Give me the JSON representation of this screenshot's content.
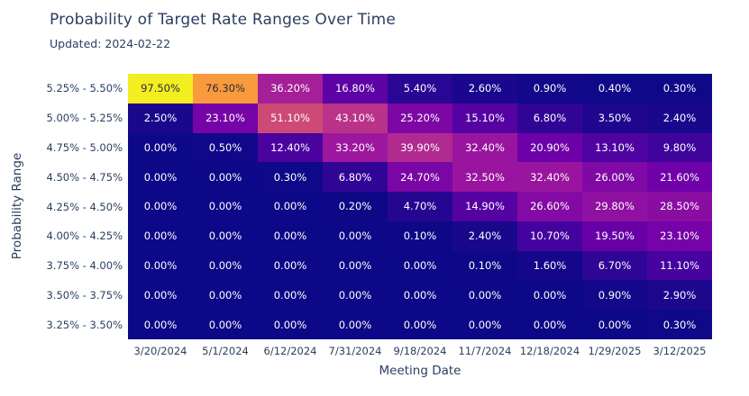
{
  "header": {
    "title": "Probability of Target Rate Ranges Over Time",
    "subtitle": "Updated: 2024-02-22"
  },
  "chart_data": {
    "type": "heatmap",
    "title": "Probability of Target Rate Ranges Over Time",
    "subtitle": "Updated: 2024-02-22",
    "xlabel": "Meeting Date",
    "ylabel": "Probability Range",
    "x_categories": [
      "3/20/2024",
      "5/1/2024",
      "6/12/2024",
      "7/31/2024",
      "9/18/2024",
      "11/7/2024",
      "12/18/2024",
      "1/29/2025",
      "3/12/2025"
    ],
    "y_categories": [
      "5.25% - 5.50%",
      "5.00% - 5.25%",
      "4.75% - 5.00%",
      "4.50% - 4.75%",
      "4.25% - 4.50%",
      "4.00% - 4.25%",
      "3.75% - 4.00%",
      "3.50% - 3.75%",
      "3.25% - 3.50%"
    ],
    "values": [
      [
        97.5,
        76.3,
        36.2,
        16.8,
        5.4,
        2.6,
        0.9,
        0.4,
        0.3
      ],
      [
        2.5,
        23.1,
        51.1,
        43.1,
        25.2,
        15.1,
        6.8,
        3.5,
        2.4
      ],
      [
        0.0,
        0.5,
        12.4,
        33.2,
        39.9,
        32.4,
        20.9,
        13.1,
        9.8
      ],
      [
        0.0,
        0.0,
        0.3,
        6.8,
        24.7,
        32.5,
        32.4,
        26.0,
        21.6
      ],
      [
        0.0,
        0.0,
        0.0,
        0.2,
        4.7,
        14.9,
        26.6,
        29.8,
        28.5
      ],
      [
        0.0,
        0.0,
        0.0,
        0.0,
        0.1,
        2.4,
        10.7,
        19.5,
        23.1
      ],
      [
        0.0,
        0.0,
        0.0,
        0.0,
        0.0,
        0.1,
        1.6,
        6.7,
        11.1
      ],
      [
        0.0,
        0.0,
        0.0,
        0.0,
        0.0,
        0.0,
        0.0,
        0.9,
        2.9
      ],
      [
        0.0,
        0.0,
        0.0,
        0.0,
        0.0,
        0.0,
        0.0,
        0.0,
        0.3
      ]
    ],
    "value_suffix": "%",
    "value_decimals": 2,
    "zmin": 0,
    "zmax": 100,
    "legend": "none",
    "grid": "off",
    "colorscale": [
      [
        "0.0",
        "#0d0887"
      ],
      [
        "0.111",
        "#46039f"
      ],
      [
        "0.222",
        "#7201a8"
      ],
      [
        "0.333",
        "#9c179e"
      ],
      [
        "0.444",
        "#bd3786"
      ],
      [
        "0.556",
        "#d8576b"
      ],
      [
        "0.667",
        "#ed7953"
      ],
      [
        "0.778",
        "#fb9f3a"
      ],
      [
        "0.889",
        "#fdca26"
      ],
      [
        "1.0",
        "#f0f921"
      ]
    ],
    "colors": {
      "axis_text": "#2a3f5f",
      "cell_text_light": "#ffffff",
      "cell_text_dark": "#2a2a3a",
      "background": "#ffffff"
    }
  }
}
